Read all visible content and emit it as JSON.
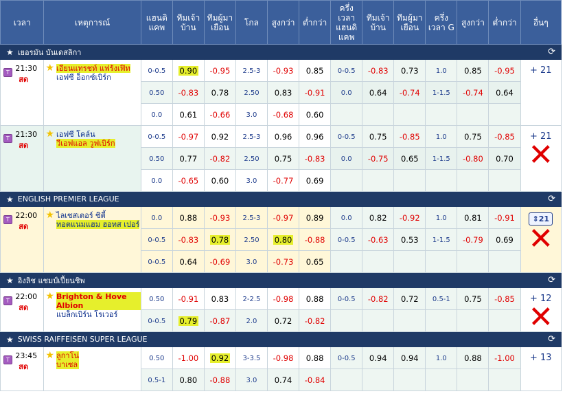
{
  "header": {
    "time": "เวลา",
    "event": "เหตุการณ์",
    "hdp_full": "แฮนดิ แคพ",
    "home": "ทีมเจ้า บ้าน",
    "away": "ทีมผู้มา เยือน",
    "goal": "โกล",
    "over": "สูงกว่า",
    "under": "ต่ำกว่า",
    "hdp_half": "ครึ่ง เวลา แฮนดิ แคพ",
    "home_half": "ทีมเจ้า บ้าน",
    "away_half": "ทีมผู้มา เยือน",
    "goal_half": "ครึ่ง เวลา G",
    "over_half": "สูงกว่า",
    "under_half": "ต่ำกว่า",
    "more": "อื่นๆ"
  },
  "leagues": [
    {
      "name": "เยอรมัน บันเดสลิกา",
      "matches": [
        {
          "time": "21:30",
          "status": "สด",
          "team1": "เอียนแทรชท์ แฟร้งเฟิท",
          "team2": "เอฟซี อ็อกซ์เบิร์ก",
          "more": "+ 21",
          "rows": [
            [
              "0-0.5",
              "0.90",
              "-0.95",
              "2.5-3",
              "-0.93",
              "0.85",
              "0-0.5",
              "-0.83",
              "0.73",
              "1.0",
              "0.85",
              "-0.95"
            ],
            [
              "0.50",
              "-0.83",
              "0.78",
              "2.50",
              "0.83",
              "-0.91",
              "0.0",
              "0.64",
              "-0.74",
              "1-1.5",
              "-0.74",
              "0.64"
            ],
            [
              "0.0",
              "0.61",
              "-0.66",
              "3.0",
              "-0.68",
              "0.60",
              "",
              "",
              "",
              "",
              "",
              ""
            ]
          ]
        },
        {
          "time": "21:30",
          "status": "สด",
          "team1": "เอฟซี โคล์น",
          "team2": "วีเอฟแอล วูฟเบิร์ก",
          "more": "+ 21",
          "rows": [
            [
              "0-0.5",
              "-0.97",
              "0.92",
              "2.5-3",
              "0.96",
              "0.96",
              "0-0.5",
              "0.75",
              "-0.85",
              "1.0",
              "0.75",
              "-0.85"
            ],
            [
              "0.50",
              "0.77",
              "-0.82",
              "2.50",
              "0.75",
              "-0.83",
              "0.0",
              "-0.75",
              "0.65",
              "1-1.5",
              "-0.80",
              "0.70"
            ],
            [
              "0.0",
              "-0.65",
              "0.60",
              "3.0",
              "-0.77",
              "0.69",
              "",
              "",
              "",
              "",
              "",
              ""
            ]
          ]
        }
      ]
    },
    {
      "name": "ENGLISH PREMIER LEAGUE",
      "matches": [
        {
          "time": "22:00",
          "status": "สด",
          "team1": "ไลเซสเตอร์ ซิตี้",
          "team2": "ทอตแนมแฮม ฮอทส เปอร์",
          "more": "21",
          "rows": [
            [
              "0.0",
              "0.88",
              "-0.93",
              "2.5-3",
              "-0.97",
              "0.89",
              "0.0",
              "0.82",
              "-0.92",
              "1.0",
              "0.81",
              "-0.91"
            ],
            [
              "0-0.5",
              "-0.83",
              "0.78",
              "2.50",
              "0.80",
              "-0.88",
              "0-0.5",
              "-0.63",
              "0.53",
              "1-1.5",
              "-0.79",
              "0.69"
            ],
            [
              "0-0.5",
              "0.64",
              "-0.69",
              "3.0",
              "-0.73",
              "0.65",
              "",
              "",
              "",
              "",
              "",
              ""
            ]
          ]
        }
      ]
    },
    {
      "name": "อิงลิช แชมป์เปี้ยนชิพ",
      "matches": [
        {
          "time": "22:00",
          "status": "สด",
          "team1": "Brighton & Hove Albion",
          "team2": "แบล็กเบิร์น โรเวอร์",
          "more": "+ 12",
          "rows": [
            [
              "0.50",
              "-0.91",
              "0.83",
              "2-2.5",
              "-0.98",
              "0.88",
              "0-0.5",
              "-0.82",
              "0.72",
              "0.5-1",
              "0.75",
              "-0.85"
            ],
            [
              "0-0.5",
              "0.79",
              "-0.87",
              "2.0",
              "0.72",
              "-0.82",
              "",
              "",
              "",
              "",
              "",
              ""
            ]
          ]
        }
      ]
    },
    {
      "name": "SWISS RAIFFEISEN SUPER LEAGUE",
      "matches": [
        {
          "time": "23:45",
          "status": "สด",
          "team1": "ลูกาโน่",
          "team2": "บาเซล",
          "more": "+ 13",
          "rows": [
            [
              "0.50",
              "-1.00",
              "0.92",
              "3-3.5",
              "-0.98",
              "0.88",
              "0-0.5",
              "0.94",
              "0.94",
              "1.0",
              "0.88",
              "-1.00"
            ],
            [
              "0.5-1",
              "0.80",
              "-0.88",
              "3.0",
              "0.74",
              "-0.84",
              "",
              "",
              "",
              "",
              "",
              ""
            ]
          ]
        }
      ]
    }
  ]
}
